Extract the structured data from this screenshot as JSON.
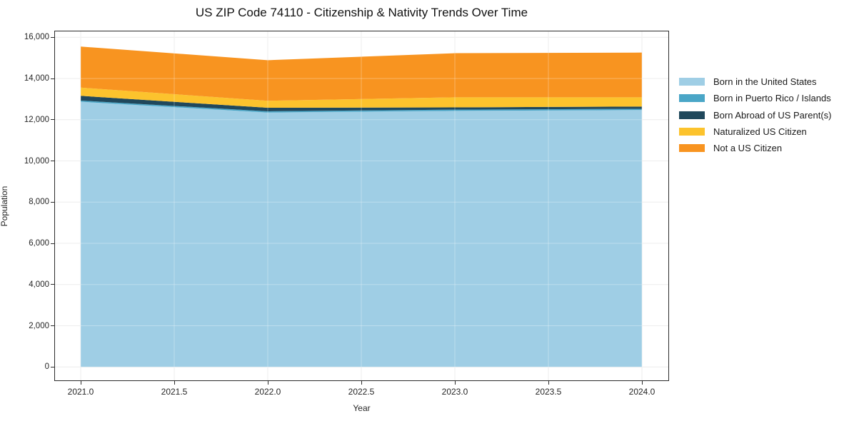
{
  "chart_data": {
    "type": "area",
    "stacked": true,
    "title": "US ZIP Code 74110 - Citizenship & Nativity Trends Over Time",
    "xlabel": "Year",
    "ylabel": "Population",
    "x": [
      2021,
      2022,
      2023,
      2024
    ],
    "series": [
      {
        "name": "Born in the United States",
        "color": "#9FCEE5",
        "values": [
          12870,
          12350,
          12430,
          12470
        ]
      },
      {
        "name": "Born in Puerto Rico / Islands",
        "color": "#4AA6C7",
        "values": [
          60,
          60,
          60,
          60
        ]
      },
      {
        "name": "Born Abroad of US Parent(s)",
        "color": "#20485C",
        "values": [
          230,
          170,
          110,
          110
        ]
      },
      {
        "name": "Naturalized US Citizen",
        "color": "#FCC32D",
        "values": [
          400,
          340,
          490,
          450
        ]
      },
      {
        "name": "Not a US Citizen",
        "color": "#F89420",
        "values": [
          1990,
          1970,
          2140,
          2170
        ]
      }
    ],
    "totals": [
      15550,
      14890,
      15230,
      15260
    ],
    "xticks": [
      2021.0,
      2021.5,
      2022.0,
      2022.5,
      2023.0,
      2023.5,
      2024.0
    ],
    "xtick_labels": [
      "2021.0",
      "2021.5",
      "2022.0",
      "2022.5",
      "2023.0",
      "2023.5",
      "2024.0"
    ],
    "yticks": [
      0,
      2000,
      4000,
      6000,
      8000,
      10000,
      12000,
      14000,
      16000
    ],
    "ytick_labels": [
      "0",
      "2,000",
      "4,000",
      "6,000",
      "8,000",
      "10,000",
      "12,000",
      "14,000",
      "16,000"
    ],
    "ylim": [
      0,
      16000
    ],
    "grid": true,
    "legend_position": "right-outside",
    "colors": {
      "background": "#ffffff",
      "grid": "#e7e7e7",
      "spine": "#2b2b2b",
      "text": "#262626"
    }
  }
}
